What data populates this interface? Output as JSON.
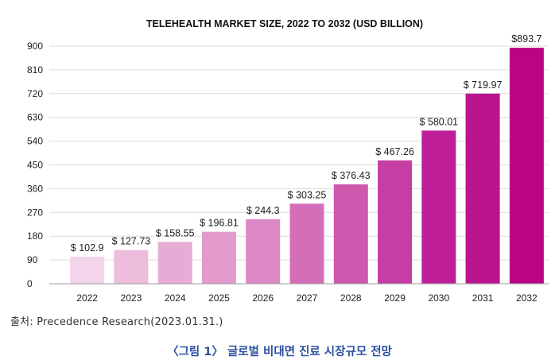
{
  "chart_data": {
    "type": "bar",
    "title": "TELEHEALTH MARKET SIZE, 2022 TO 2032 (USD BILLION)",
    "xlabel": "",
    "ylabel": "",
    "ylim": [
      0,
      900
    ],
    "yticks": [
      0,
      90,
      180,
      270,
      360,
      450,
      540,
      630,
      720,
      810,
      900
    ],
    "grid": true,
    "legend": "none",
    "categories": [
      "2022",
      "2023",
      "2024",
      "2025",
      "2026",
      "2027",
      "2028",
      "2029",
      "2030",
      "2031",
      "2032"
    ],
    "values": [
      102.9,
      127.73,
      158.55,
      196.81,
      244.3,
      303.25,
      376.43,
      467.26,
      580.01,
      719.97,
      893.7
    ],
    "data_labels": [
      "$ 102.9",
      "$ 127.73",
      "$ 158.55",
      "$ 196.81",
      "$ 244.3",
      "$ 303.25",
      "$ 376.43",
      "$ 467.26",
      "$ 580.01",
      "$ 719.97",
      "$893.7"
    ],
    "colors": [
      "#f3d4ea",
      "#edbddd",
      "#e7acd5",
      "#e29acd",
      "#dc88c4",
      "#d56eb8",
      "#cd58ae",
      "#c43ea4",
      "#bf1f96",
      "#bb148f",
      "#b90585"
    ]
  },
  "source_note": "출처:  Precedence  Research(2023.01.31.)",
  "caption": "〈그림 1〉 글로벌 비대면 진료 시장규모 전망"
}
